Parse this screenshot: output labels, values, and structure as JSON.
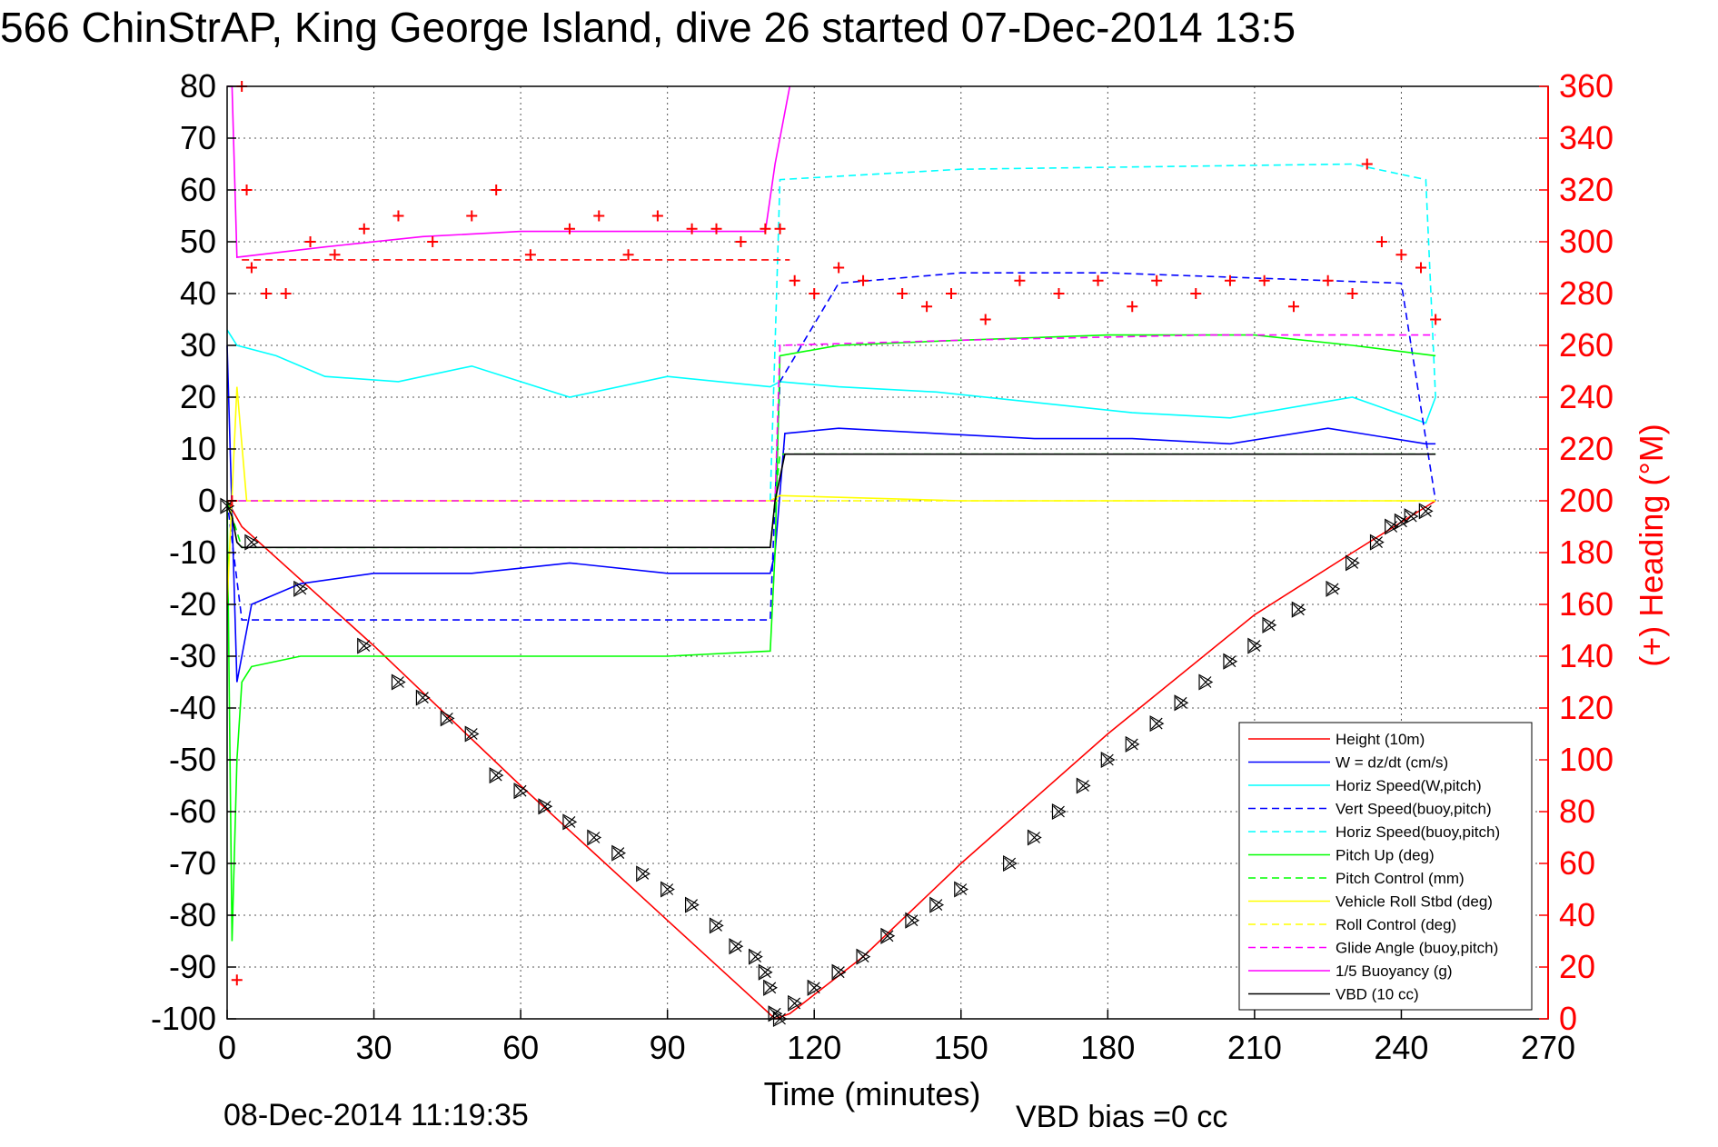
{
  "title": "566 ChinStrAP, King George Island, dive 26 started 07-Dec-2014 13:5",
  "footer": {
    "timestamp": "08-Dec-2014 11:19:35",
    "vbd_bias": "VBD bias =0 cc"
  },
  "colors": {
    "red": "#ff0000",
    "blue": "#0000ff",
    "cyan": "#00ffff",
    "green": "#00ff00",
    "yellow": "#ffff00",
    "magenta": "#ff00ff",
    "black": "#000000"
  },
  "chart_data": {
    "type": "line",
    "title": "566 ChinStrAP, King George Island, dive 26 started 07-Dec-2014 13:5",
    "xlabel": "Time (minutes)",
    "ylabel": "",
    "y2label": "(+) Heading (°M)",
    "xlim": [
      0,
      270
    ],
    "ylim": [
      -100,
      80
    ],
    "y2lim": [
      0,
      360
    ],
    "xticks": [
      0,
      30,
      60,
      90,
      120,
      150,
      180,
      210,
      240,
      270
    ],
    "yticks": [
      -100,
      -90,
      -80,
      -70,
      -60,
      -50,
      -40,
      -30,
      -20,
      -10,
      0,
      10,
      20,
      30,
      40,
      50,
      60,
      70,
      80
    ],
    "y2ticks": [
      0,
      20,
      40,
      60,
      80,
      100,
      120,
      140,
      160,
      180,
      200,
      220,
      240,
      260,
      280,
      300,
      320,
      340,
      360
    ],
    "grid": true,
    "legend_position": "lower-right",
    "series": [
      {
        "name": "Height (10m)",
        "color": "#ff0000",
        "style": "solid",
        "x": [
          0,
          3,
          30,
          60,
          90,
          112,
          115,
          130,
          150,
          180,
          210,
          230,
          247
        ],
        "y": [
          0,
          -5,
          -28,
          -55,
          -81,
          -100,
          -99,
          -88,
          -70,
          -45,
          -22,
          -10,
          0
        ]
      },
      {
        "name": "W = dz/dt (cm/s)",
        "color": "#0000ff",
        "style": "solid",
        "x": [
          0,
          2,
          5,
          15,
          30,
          50,
          70,
          90,
          111,
          112,
          114,
          125,
          145,
          165,
          185,
          205,
          225,
          245,
          247
        ],
        "y": [
          30,
          -35,
          -20,
          -16,
          -14,
          -14,
          -12,
          -14,
          -14,
          -10,
          13,
          14,
          13,
          12,
          12,
          11,
          14,
          11,
          11
        ]
      },
      {
        "name": "Horiz Speed(W,pitch)",
        "color": "#00ffff",
        "style": "solid",
        "x": [
          0,
          2,
          10,
          20,
          35,
          50,
          70,
          90,
          111,
          113,
          125,
          145,
          165,
          185,
          205,
          230,
          245,
          247
        ],
        "y": [
          33,
          30,
          28,
          24,
          23,
          26,
          20,
          24,
          22,
          23,
          22,
          21,
          19,
          17,
          16,
          20,
          15,
          20
        ]
      },
      {
        "name": "Vert Speed(buoy,pitch)",
        "color": "#0000ff",
        "style": "dashed",
        "x": [
          0,
          3,
          111,
          112,
          113,
          125,
          150,
          180,
          210,
          240,
          247
        ],
        "y": [
          0,
          -23,
          -23,
          0,
          23,
          42,
          44,
          44,
          43,
          42,
          0
        ]
      },
      {
        "name": "Horiz Speed(buoy,pitch)",
        "color": "#00ffff",
        "style": "dashed",
        "x": [
          0,
          3,
          111,
          112,
          113,
          150,
          230,
          245,
          247
        ],
        "y": [
          0,
          0,
          0,
          30,
          62,
          64,
          65,
          62,
          20
        ]
      },
      {
        "name": "Pitch Up (deg)",
        "color": "#00ff00",
        "style": "solid",
        "x": [
          0,
          1,
          2,
          3,
          5,
          15,
          30,
          60,
          90,
          111,
          112,
          113,
          125,
          150,
          180,
          210,
          230,
          247
        ],
        "y": [
          0,
          -85,
          -50,
          -35,
          -32,
          -30,
          -30,
          -30,
          -30,
          -29,
          -10,
          28,
          30,
          31,
          32,
          32,
          30,
          28
        ]
      },
      {
        "name": "Pitch Control (mm)",
        "color": "#00ff00",
        "style": "dashed",
        "x": [
          0,
          3,
          111,
          112,
          113,
          247
        ],
        "y": [
          0,
          -9,
          -9,
          0,
          9,
          9
        ]
      },
      {
        "name": "Vehicle Roll Stbd (deg)",
        "color": "#ffff00",
        "style": "solid",
        "x": [
          0,
          2,
          4,
          30,
          60,
          90,
          111,
          113,
          150,
          200,
          230,
          247
        ],
        "y": [
          -20,
          22,
          0,
          0,
          0,
          0,
          0,
          1,
          0,
          0,
          0,
          0
        ]
      },
      {
        "name": "Roll Control (deg)",
        "color": "#ffff00",
        "style": "dashed",
        "x": [
          0,
          247
        ],
        "y": [
          0,
          0
        ]
      },
      {
        "name": "Glide Angle (buoy,pitch)",
        "color": "#ff00ff",
        "style": "dashed",
        "x": [
          0,
          3,
          111,
          112,
          113,
          150,
          200,
          247
        ],
        "y": [
          0,
          0,
          0,
          0,
          30,
          31,
          32,
          32
        ]
      },
      {
        "name": "1/5 Buoyancy (g)",
        "color": "#ff00ff",
        "style": "solid",
        "x": [
          0,
          1,
          2,
          20,
          40,
          60,
          80,
          100,
          110,
          112,
          115
        ],
        "y": [
          80,
          80,
          47,
          49,
          51,
          52,
          52,
          52,
          52,
          65,
          80
        ]
      },
      {
        "name": "VBD (10 cc)",
        "color": "#000000",
        "style": "solid",
        "x": [
          0,
          1,
          2,
          3,
          111,
          112,
          114,
          247
        ],
        "y": [
          -1,
          -3,
          -8,
          -9,
          -9,
          0,
          9,
          9
        ]
      }
    ],
    "heading": {
      "name": "(+) Heading (°M)",
      "color": "#ff0000",
      "marker": "+",
      "x": [
        1,
        2,
        3,
        4,
        5,
        8,
        12,
        17,
        22,
        28,
        35,
        42,
        50,
        55,
        62,
        70,
        76,
        82,
        88,
        95,
        100,
        105,
        110,
        113,
        116,
        120,
        125,
        130,
        138,
        143,
        148,
        155,
        162,
        170,
        178,
        185,
        190,
        198,
        205,
        212,
        218,
        225,
        230,
        233,
        236,
        240,
        244,
        247
      ],
      "y": [
        200,
        15,
        360,
        320,
        290,
        280,
        280,
        300,
        295,
        305,
        310,
        300,
        310,
        320,
        295,
        305,
        310,
        295,
        310,
        305,
        305,
        300,
        305,
        305,
        285,
        280,
        290,
        285,
        280,
        275,
        280,
        270,
        285,
        280,
        285,
        275,
        285,
        280,
        285,
        285,
        275,
        285,
        280,
        330,
        300,
        295,
        290,
        270
      ]
    },
    "heading_reference": {
      "color": "#ff0000",
      "style": "dashed",
      "x": [
        3,
        115
      ],
      "y": [
        293,
        293
      ]
    },
    "depth_markers": {
      "marker": "triangle-x",
      "color": "#000000",
      "x": [
        0,
        5,
        15,
        28,
        35,
        40,
        45,
        50,
        55,
        60,
        65,
        70,
        75,
        80,
        85,
        90,
        95,
        100,
        104,
        108,
        110,
        111,
        112,
        113,
        116,
        120,
        125,
        130,
        135,
        140,
        145,
        150,
        160,
        165,
        170,
        175,
        180,
        185,
        190,
        195,
        200,
        205,
        210,
        213,
        219,
        226,
        230,
        235,
        238,
        240,
        242,
        245
      ],
      "y": [
        -1,
        -8,
        -17,
        -28,
        -35,
        -38,
        -42,
        -45,
        -53,
        -56,
        -59,
        -62,
        -65,
        -68,
        -72,
        -75,
        -78,
        -82,
        -86,
        -88,
        -91,
        -94,
        -99,
        -100,
        -97,
        -94,
        -91,
        -88,
        -84,
        -81,
        -78,
        -75,
        -70,
        -65,
        -60,
        -55,
        -50,
        -47,
        -43,
        -39,
        -35,
        -31,
        -28,
        -24,
        -21,
        -17,
        -12,
        -8,
        -5,
        -4,
        -3,
        -2
      ]
    }
  }
}
